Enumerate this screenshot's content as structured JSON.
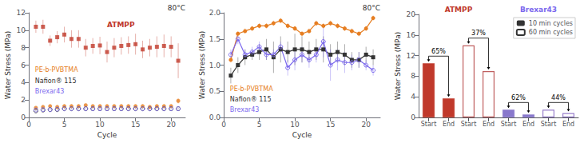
{
  "chart_data": [
    {
      "type": "scatter",
      "title": "80°C",
      "xlabel": "Cycle",
      "ylabel": "Water Stress (MPa)",
      "xlim": [
        0,
        22
      ],
      "xticks": [
        0,
        5,
        10,
        15,
        20
      ],
      "ylim": [
        0,
        12
      ],
      "yticks": [
        0,
        2,
        4,
        6,
        8,
        10,
        12
      ],
      "grid": false,
      "x": [
        1,
        2,
        3,
        4,
        5,
        6,
        7,
        8,
        9,
        10,
        11,
        12,
        13,
        14,
        15,
        16,
        17,
        18,
        19,
        20,
        21
      ],
      "series": [
        {
          "name": "ATMPP",
          "color": "#c0392b",
          "marker": "square",
          "values": [
            10.4,
            10.4,
            8.8,
            9.2,
            9.5,
            9.0,
            9.0,
            8.0,
            8.2,
            8.25,
            7.5,
            8.0,
            8.2,
            8.3,
            8.4,
            7.8,
            8.0,
            8.1,
            8.2,
            8.1,
            6.5
          ],
          "yerr": [
            0.7,
            0.8,
            0.6,
            0.7,
            0.9,
            1.0,
            1.0,
            1.0,
            0.9,
            1.0,
            1.2,
            1.1,
            1.0,
            1.0,
            1.2,
            1.0,
            1.0,
            1.2,
            1.3,
            1.2,
            2.0
          ]
        },
        {
          "name": "PE-b-PVBTMA",
          "color": "#e67e22",
          "marker": "circle",
          "values": [
            1.1,
            1.2,
            1.3,
            1.2,
            1.3,
            1.3,
            1.3,
            1.4,
            1.3,
            1.3,
            1.3,
            1.3,
            1.3,
            1.3,
            1.3,
            1.3,
            1.2,
            1.3,
            1.3,
            1.3,
            1.9
          ],
          "yerr": [
            0.05,
            0.05,
            0.05,
            0.05,
            0.05,
            0.05,
            0.05,
            0.05,
            0.05,
            0.05,
            0.05,
            0.05,
            0.05,
            0.05,
            0.05,
            0.05,
            0.05,
            0.05,
            0.05,
            0.05,
            0.3
          ]
        },
        {
          "name": "Nafion® 115",
          "color": "#333333",
          "marker": "open_circle",
          "values": [
            0.75,
            0.85,
            0.9,
            0.9,
            1.0,
            1.0,
            1.0,
            1.0,
            1.0,
            1.0,
            1.0,
            1.0,
            1.0,
            1.0,
            1.0,
            1.0,
            1.0,
            1.0,
            1.0,
            1.0,
            1.0
          ],
          "yerr": [
            0.05,
            0.05,
            0.05,
            0.05,
            0.05,
            0.05,
            0.05,
            0.05,
            0.05,
            0.05,
            0.05,
            0.05,
            0.05,
            0.05,
            0.05,
            0.05,
            0.05,
            0.05,
            0.05,
            0.05,
            0.05
          ]
        },
        {
          "name": "Brexar43",
          "color": "#7b68ee",
          "marker": "open_circle",
          "values": [
            0.85,
            0.9,
            0.9,
            0.95,
            1.0,
            1.0,
            1.0,
            1.0,
            1.0,
            1.0,
            1.0,
            1.0,
            1.0,
            1.0,
            1.0,
            1.0,
            1.0,
            1.0,
            1.0,
            1.0,
            1.0
          ],
          "yerr": [
            0.05,
            0.05,
            0.05,
            0.05,
            0.05,
            0.05,
            0.05,
            0.05,
            0.05,
            0.05,
            0.05,
            0.05,
            0.05,
            0.05,
            0.05,
            0.05,
            0.05,
            0.05,
            0.05,
            0.05,
            0.05
          ]
        }
      ]
    },
    {
      "type": "line",
      "title": "80°C",
      "xlabel": "Cycle",
      "ylabel": "Water Stress (MPa)",
      "xlim": [
        0,
        22
      ],
      "xticks": [
        0,
        5,
        10,
        15,
        20
      ],
      "ylim": [
        0.0,
        2.0
      ],
      "yticks": [
        {
          "value": 0.0,
          "label": "0.0"
        },
        0.5,
        {
          "value": 1.0,
          "label": "1.0"
        },
        1.5,
        {
          "value": 2.0,
          "label": "2.0"
        }
      ],
      "grid": false,
      "x": [
        1,
        2,
        3,
        4,
        5,
        6,
        7,
        8,
        9,
        10,
        11,
        12,
        13,
        14,
        15,
        16,
        17,
        18,
        19,
        20,
        21
      ],
      "series": [
        {
          "name": "PE-b-PVBTMA",
          "color": "#e67e22",
          "marker": "circle",
          "values": [
            1.1,
            1.6,
            1.65,
            1.7,
            1.75,
            1.75,
            1.8,
            1.85,
            1.75,
            1.7,
            1.6,
            1.65,
            1.8,
            1.75,
            1.8,
            1.75,
            1.7,
            1.65,
            1.6,
            1.7,
            1.9
          ],
          "yerr": [
            0.05,
            0.05,
            0.05,
            0.05,
            0.05,
            0.05,
            0.05,
            0.05,
            0.05,
            0.05,
            0.05,
            0.05,
            0.05,
            0.05,
            0.05,
            0.05,
            0.05,
            0.05,
            0.05,
            0.05,
            0.05
          ]
        },
        {
          "name": "Nafion® 115",
          "color": "#333333",
          "marker": "square",
          "values": [
            0.8,
            1.0,
            1.15,
            1.2,
            1.25,
            1.3,
            1.15,
            1.3,
            1.25,
            1.3,
            1.3,
            1.25,
            1.3,
            1.3,
            1.2,
            1.25,
            1.2,
            1.1,
            1.1,
            1.2,
            1.15
          ],
          "yerr": [
            0.15,
            0.15,
            0.15,
            0.1,
            0.15,
            0.2,
            0.3,
            0.25,
            0.2,
            0.3,
            0.25,
            0.2,
            0.2,
            0.25,
            0.2,
            0.2,
            0.2,
            0.15,
            0.15,
            0.15,
            0.15
          ]
        },
        {
          "name": "Brexar43",
          "color": "#7b68ee",
          "marker": "open_circle",
          "values": [
            1.2,
            1.5,
            1.2,
            1.25,
            1.35,
            1.2,
            1.2,
            1.35,
            0.95,
            1.1,
            1.2,
            1.1,
            1.2,
            1.45,
            1.0,
            1.1,
            1.05,
            1.05,
            1.1,
            1.0,
            0.9
          ],
          "yerr": [
            0.1,
            0.1,
            0.1,
            0.1,
            0.1,
            0.1,
            0.1,
            0.1,
            0.15,
            0.2,
            0.15,
            0.15,
            0.15,
            0.3,
            0.3,
            0.2,
            0.2,
            0.15,
            0.15,
            0.1,
            0.1
          ]
        }
      ]
    },
    {
      "type": "bar",
      "ylabel": "Water Stress (MPa)",
      "categories": [
        "Start",
        "End",
        "Start",
        "End",
        "Start",
        "End",
        "Start",
        "End"
      ],
      "ylim": [
        0,
        20
      ],
      "yticks": [
        0,
        4,
        8,
        12,
        16,
        20
      ],
      "grid": false,
      "legend": "upper right",
      "groups": [
        {
          "text": "ATMPP",
          "color": "#c0392b"
        },
        {
          "text": "Brexar43",
          "color": "#7b68ee"
        }
      ],
      "annotations": [
        "65%",
        "37%",
        "62%",
        "44%"
      ],
      "series": [
        {
          "name": "10 min cycles",
          "color": "#333333",
          "marker": "solid",
          "colors": [
            "#c0392b",
            "#c0392b",
            null,
            null,
            "#8878cc",
            "#8878cc",
            null,
            null
          ],
          "values": [
            10.5,
            3.7,
            null,
            null,
            1.5,
            0.57,
            null,
            null
          ]
        },
        {
          "name": "60 min cycles",
          "color": "#333333",
          "marker": "outline",
          "colors": [
            null,
            null,
            "#c06060",
            "#c06060",
            null,
            null,
            "#9980cc",
            "#9980cc"
          ],
          "values": [
            null,
            null,
            14.0,
            9.0,
            null,
            null,
            1.5,
            0.84
          ]
        }
      ]
    }
  ]
}
